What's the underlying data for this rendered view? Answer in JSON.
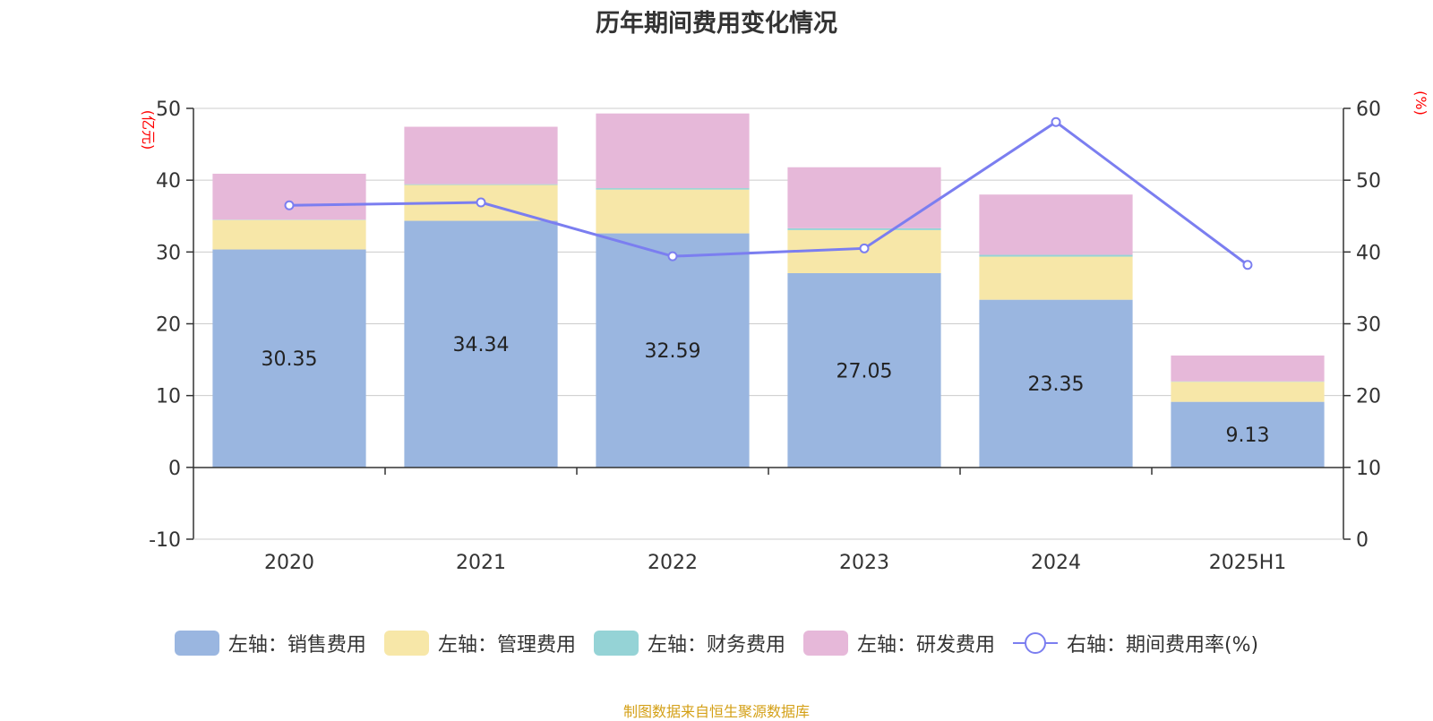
{
  "chart_data": {
    "type": "bar",
    "title": "历年期间费用变化情况",
    "categories": [
      "2020",
      "2021",
      "2022",
      "2023",
      "2024",
      "2025H1"
    ],
    "left_axis": {
      "unit_label": "(亿元)",
      "ylim": [
        -10,
        50
      ],
      "ticks": [
        "50",
        "40",
        "30",
        "20",
        "10",
        "0",
        "-10"
      ]
    },
    "right_axis": {
      "unit_label": "(%)",
      "ylim": [
        0,
        60
      ],
      "ticks": [
        "60",
        "50",
        "40",
        "30",
        "20",
        "10",
        "0"
      ]
    },
    "series": [
      {
        "name": "左轴：销售费用",
        "type": "bar",
        "axis": "left",
        "color": "#9ab6e0",
        "values": [
          30.35,
          34.34,
          32.59,
          27.05,
          23.35,
          9.13
        ],
        "labels": [
          "30.35",
          "34.34",
          "32.59",
          "27.05",
          "23.35",
          "9.13"
        ]
      },
      {
        "name": "左轴：管理费用",
        "type": "bar",
        "axis": "left",
        "color": "#f7e7a8",
        "values": [
          4.1,
          5.0,
          6.1,
          6.0,
          6.0,
          2.8
        ]
      },
      {
        "name": "左轴：财务费用",
        "type": "bar",
        "axis": "left",
        "color": "#95d3d6",
        "values": [
          0.05,
          0.1,
          0.2,
          0.25,
          0.25,
          0.05
        ]
      },
      {
        "name": "左轴：研发费用",
        "type": "bar",
        "axis": "left",
        "color": "#e6b8d9",
        "values": [
          6.4,
          8.0,
          10.4,
          8.5,
          8.4,
          3.6
        ]
      },
      {
        "name": "右轴：期间费用率(%)",
        "type": "line",
        "axis": "right",
        "color": "#7b7ef0",
        "values": [
          46.5,
          46.9,
          39.4,
          40.5,
          58.1,
          38.2
        ]
      }
    ],
    "grid": true,
    "legend_position": "bottom"
  },
  "footer": "制图数据来自恒生聚源数据库"
}
